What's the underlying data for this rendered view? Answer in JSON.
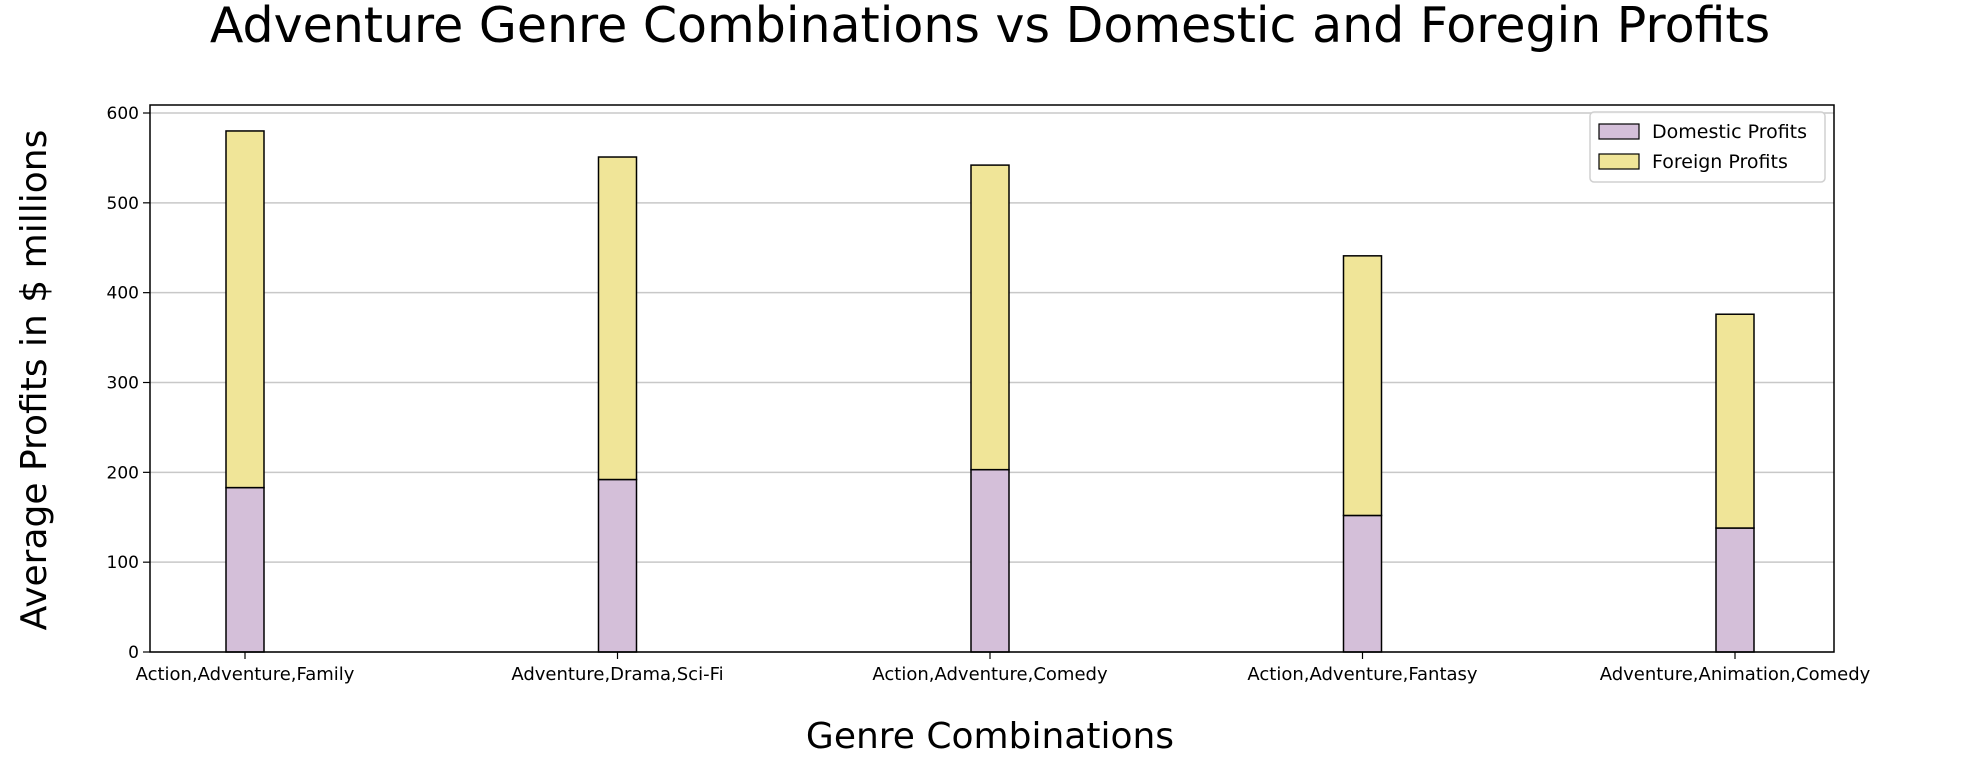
{
  "chart_data": {
    "type": "bar",
    "stacked": true,
    "title": "Adventure Genre Combinations vs Domestic and Foregin Profits",
    "xlabel": "Genre Combinations",
    "ylabel": "Average Profits in $ millions",
    "ylim": [
      0,
      600
    ],
    "yticks": [
      0,
      100,
      200,
      300,
      400,
      500,
      600
    ],
    "grid": "horizontal",
    "legend_position": "top-right",
    "categories": [
      "Action,Adventure,Family",
      "Adventure,Drama,Sci-Fi",
      "Action,Adventure,Comedy",
      "Action,Adventure,Fantasy",
      "Adventure,Animation,Comedy"
    ],
    "series": [
      {
        "name": "Domestic Profits",
        "color": "#d4bfd9",
        "values": [
          183,
          192,
          203,
          152,
          138
        ]
      },
      {
        "name": "Foreign Profits",
        "color": "#f0e598",
        "values": [
          397,
          359,
          339,
          289,
          238
        ]
      }
    ]
  }
}
